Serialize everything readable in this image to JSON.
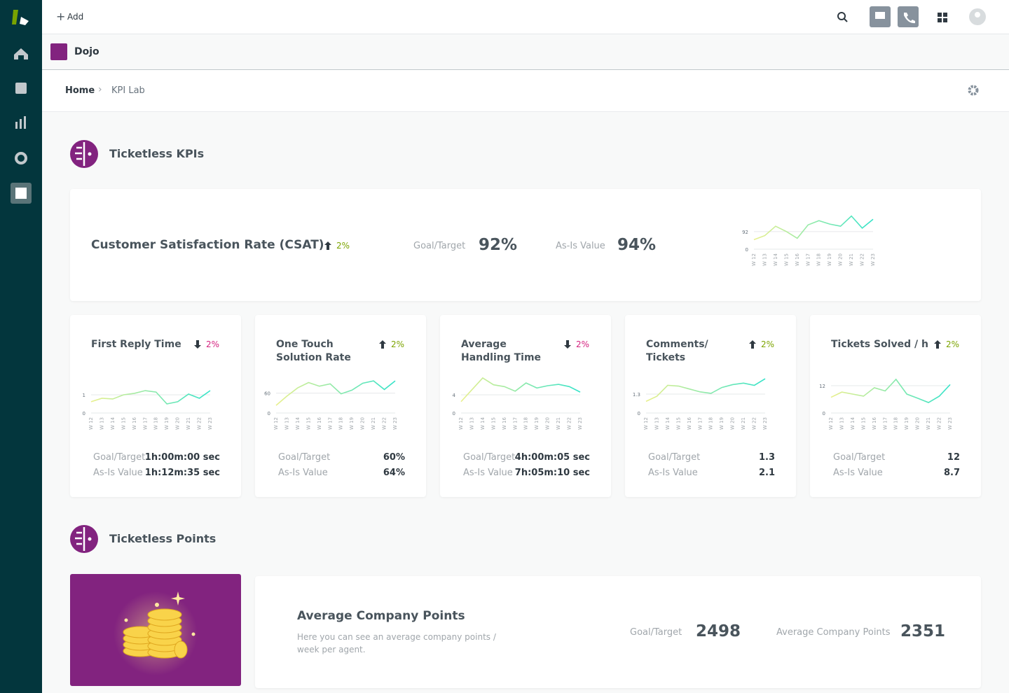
{
  "topbar": {
    "add": "Add"
  },
  "app": {
    "name": "Dojo"
  },
  "breadcrumb": [
    "Home",
    "KPI Lab"
  ],
  "sections": [
    "Ticketless KPIs",
    "Ticketless Points"
  ],
  "line_colors": [
    "#e9f08c",
    "#34e3c9"
  ],
  "weeks": [
    "W 12",
    "W 13",
    "W 14",
    "W 15",
    "W 16",
    "W 17",
    "W 18",
    "W 19",
    "W 20",
    "W 21",
    "W 22",
    "W 23"
  ],
  "csat": {
    "title": "Customer Satisfaction Rate (CSAT)",
    "trend": "2%",
    "direction": "up",
    "goal_label": "Goal/Target",
    "goal": "92%",
    "asis_label": "As-Is Value",
    "asis": "94%",
    "chart": {
      "ylim": [
        0,
        190
      ],
      "yticks": [
        0,
        92
      ],
      "values": [
        50,
        71,
        120,
        92,
        57,
        127,
        149,
        131,
        120,
        173,
        110,
        156
      ]
    }
  },
  "kpis": [
    {
      "title": "First Reply Time",
      "trend": "2%",
      "direction": "down",
      "goal_label": "Goal/Target",
      "goal": "1h:00m:00 sec",
      "asis_label": "As-Is Value",
      "asis": "1h:12m:35 sec",
      "chart": {
        "ylim": [
          0,
          2
        ],
        "yticks": [
          0,
          1
        ],
        "values": [
          0.62,
          0.81,
          0.77,
          1.0,
          1.08,
          1.23,
          1.15,
          0.5,
          0.62,
          1.04,
          0.81,
          1.23
        ]
      }
    },
    {
      "title": "One Touch Solution Rate",
      "trend": "2%",
      "direction": "up",
      "goal_label": "Goal/Target",
      "goal": "60%",
      "asis_label": "As-Is Value",
      "asis": "64%",
      "chart": {
        "ylim": [
          0,
          110
        ],
        "yticks": [
          0,
          60
        ],
        "values": [
          23,
          51,
          76,
          92,
          81,
          88,
          58,
          69,
          90,
          97,
          71,
          97
        ]
      }
    },
    {
      "title": "Average Handling Time",
      "trend": "2%",
      "direction": "down",
      "goal_label": "Goal/Target",
      "goal": "4h:00m:05 sec",
      "asis_label": "As-Is Value",
      "asis": "7h:05m:10 sec",
      "chart": {
        "ylim": [
          0,
          8
        ],
        "yticks": [
          0,
          4
        ],
        "values": [
          2.5,
          5.1,
          7.7,
          6.2,
          5.8,
          4.8,
          6.6,
          5.5,
          6.0,
          6.3,
          5.8,
          4.6
        ]
      }
    },
    {
      "title": "Comments/ Tickets",
      "trend": "2%",
      "direction": "up",
      "goal_label": "Goal/Target",
      "goal": "1.3",
      "asis_label": "As-Is Value",
      "asis": "2.1",
      "chart": {
        "ylim": [
          0,
          2.5
        ],
        "yticks": [
          0,
          1.3
        ],
        "values": [
          0.8,
          1.15,
          1.9,
          1.85,
          1.65,
          1.45,
          1.35,
          1.75,
          1.95,
          2.05,
          1.9,
          2.35
        ]
      }
    },
    {
      "title": "Tickets Solved / h",
      "trend": "2%",
      "direction": "up",
      "goal_label": "Goal/Target",
      "goal": "12",
      "asis_label": "As-Is Value",
      "asis": "8.7",
      "chart": {
        "ylim": [
          0,
          16
        ],
        "yticks": [
          0,
          12
        ],
        "values": [
          6.9,
          9.2,
          8.3,
          7.4,
          11.1,
          9.7,
          14.8,
          8.3,
          6.5,
          4.6,
          7.4,
          12.5
        ]
      }
    }
  ],
  "points": {
    "title": "Average Company Points",
    "description": "Here you can see an average company points / week per agent.",
    "goal_label": "Goal/Target",
    "goal": "2498",
    "avg_label": "Average Company Points",
    "avg": "2351"
  }
}
